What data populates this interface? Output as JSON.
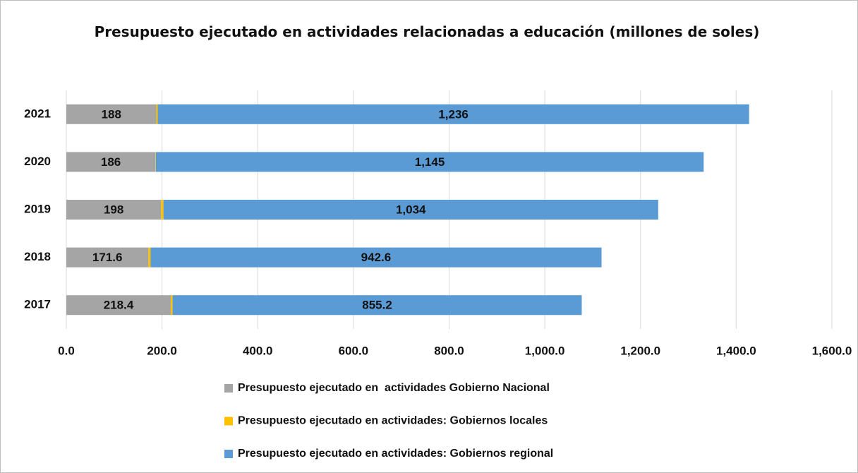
{
  "chart_data": {
    "type": "stacked-bar-horizontal",
    "title": "Presupuesto ejecutado en actividades relacionadas a educación (millones de soles)",
    "categories": [
      "2017",
      "2018",
      "2019",
      "2020",
      "2021"
    ],
    "series": [
      {
        "name": "Presupuesto ejecutado en  actividades Gobierno Nacional",
        "color": "#a5a5a5",
        "values": [
          218.4,
          171.6,
          198,
          186,
          188
        ]
      },
      {
        "name": "Presupuesto ejecutado en actividades: Gobiernos locales",
        "color": "#ffc000",
        "values": [
          3.6,
          4.4,
          5,
          1,
          3
        ]
      },
      {
        "name": "Presupuesto ejecutado en actividades: Gobiernos regional",
        "color": "#5b9bd5",
        "values": [
          855.2,
          942.6,
          1034,
          1145,
          1236
        ],
        "value_labels": [
          "855.2",
          "942.6",
          "1,034",
          "1,145",
          "1,236"
        ]
      }
    ],
    "xlim": [
      0,
      1600
    ],
    "xticks": [
      {
        "value": 0,
        "label": "0.0"
      },
      {
        "value": 200,
        "label": "200.0"
      },
      {
        "value": 400,
        "label": "400.0"
      },
      {
        "value": 600,
        "label": "600.0"
      },
      {
        "value": 800,
        "label": "800.0"
      },
      {
        "value": 1000,
        "label": "1,000.0"
      },
      {
        "value": 1200,
        "label": "1,200.0"
      },
      {
        "value": 1400,
        "label": "1,400.0"
      },
      {
        "value": 1600,
        "label": "1,600.0"
      }
    ],
    "grid": true,
    "legend": "bottom"
  }
}
